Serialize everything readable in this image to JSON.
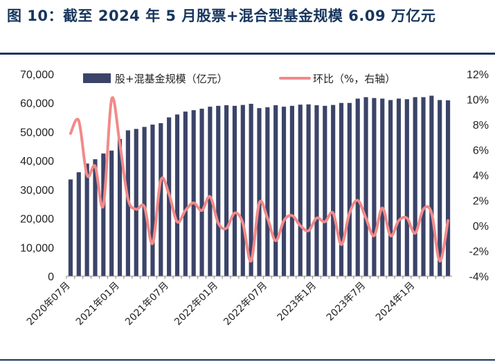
{
  "title": "图 10：截至 2024 年 5 月股票+混合型基金规模 6.09 万亿元",
  "chart_data": {
    "type": "bar+line",
    "categories": [
      "2020年07月",
      "2020年08月",
      "2020年09月",
      "2020年10月",
      "2020年11月",
      "2020年12月",
      "2021年01月",
      "2021年02月",
      "2021年03月",
      "2021年04月",
      "2021年05月",
      "2021年06月",
      "2021年07月",
      "2021年08月",
      "2021年09月",
      "2021年10月",
      "2021年11月",
      "2021年12月",
      "2022年01月",
      "2022年02月",
      "2022年03月",
      "2022年04月",
      "2022年05月",
      "2022年06月",
      "2022年07月",
      "2022年08月",
      "2022年09月",
      "2022年10月",
      "2022年11月",
      "2022年12月",
      "2023年1月",
      "2023年2月",
      "2023年3月",
      "2023年4月",
      "2023年5月",
      "2023年6月",
      "2023年7月",
      "2023年8月",
      "2023年9月",
      "2023年10月",
      "2023年11月",
      "2023年12月",
      "2024年1月",
      "2024年2月",
      "2024年3月",
      "2024年4月",
      "2024年5月"
    ],
    "x_tick_labels": [
      "2020年07月",
      "2021年01月",
      "2021年07月",
      "2022年01月",
      "2022年07月",
      "2023年1月",
      "2023年7月",
      "2024年1月"
    ],
    "series": [
      {
        "name": "股+混基金规模（亿元）",
        "type": "bar",
        "axis": "left",
        "color": "#3b4468",
        "values": [
          33500,
          36000,
          39000,
          40500,
          42500,
          43500,
          47500,
          50500,
          51000,
          51700,
          52500,
          53000,
          55000,
          56000,
          57000,
          57500,
          58000,
          58700,
          59000,
          59200,
          59000,
          59300,
          59700,
          58200,
          58500,
          59200,
          58700,
          59000,
          59400,
          59500,
          59200,
          59000,
          59300,
          60000,
          60000,
          61500,
          62000,
          61700,
          61500,
          61000,
          61500,
          61300,
          62000,
          62000,
          62500,
          61000,
          60900
        ]
      },
      {
        "name": "环比（%，右轴）",
        "type": "line",
        "axis": "right",
        "color": "#f28a8a",
        "values": [
          7.3,
          8.3,
          4.0,
          4.7,
          1.6,
          10.0,
          6.5,
          2.1,
          1.3,
          1.5,
          -1.4,
          3.6,
          2.5,
          0.3,
          1.2,
          1.8,
          1.2,
          2.3,
          0.2,
          -0.2,
          1.0,
          0.2,
          -2.8,
          1.8,
          0.6,
          -1.2,
          0.4,
          0.8,
          0.0,
          -0.4,
          0.6,
          0.3,
          1.0,
          -1.5,
          1.0,
          2.0,
          0.6,
          -0.8,
          1.4,
          -0.8,
          0.4,
          0.6,
          -0.6,
          1.3,
          1.0,
          -2.8,
          0.4
        ]
      }
    ],
    "y_left": {
      "min": 0,
      "max": 70000,
      "ticks": [
        "0",
        "10,000",
        "20,000",
        "30,000",
        "40,000",
        "50,000",
        "60,000",
        "70,000"
      ]
    },
    "y_right": {
      "min": -4,
      "max": 12,
      "ticks": [
        "-4%",
        "-2%",
        "0%",
        "2%",
        "4%",
        "6%",
        "8%",
        "10%",
        "12%"
      ]
    },
    "legend_position": "top",
    "grid": false
  }
}
